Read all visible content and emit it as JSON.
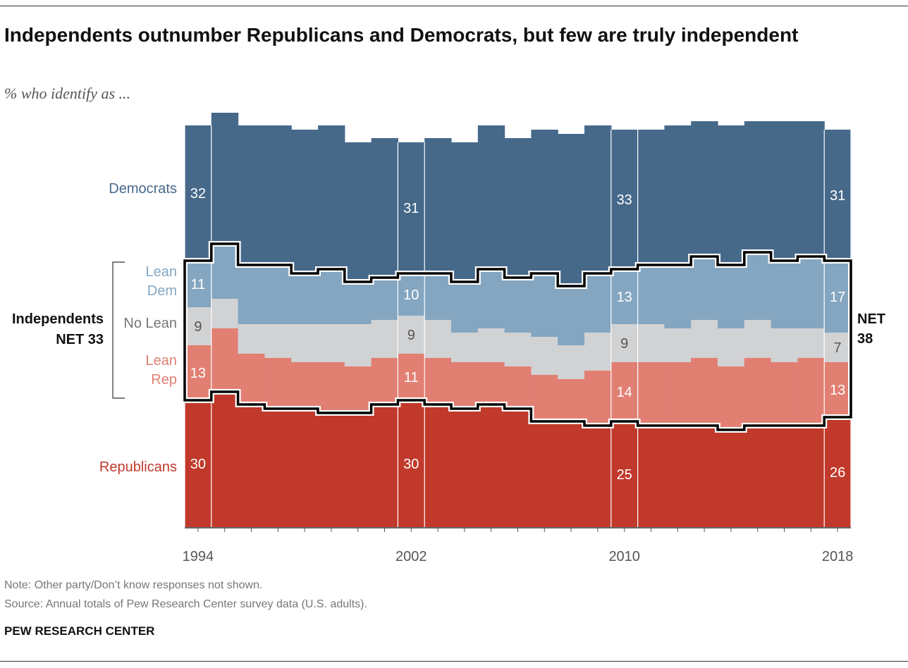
{
  "title": "Independents outnumber Republicans and Democrats, but few are truly independent",
  "subtitle": "% who identify as ...",
  "note": "Note: Other party/Don’t know responses not shown.",
  "source": "Source: Annual totals of Pew Research Center survey data (U.S. adults).",
  "brand": "PEW RESEARCH CENTER",
  "chart_data": {
    "type": "area",
    "stacked": true,
    "step": true,
    "x": [
      1994,
      1995,
      1996,
      1997,
      1998,
      1999,
      2000,
      2001,
      2002,
      2003,
      2004,
      2005,
      2006,
      2007,
      2008,
      2009,
      2010,
      2011,
      2012,
      2013,
      2014,
      2015,
      2016,
      2017,
      2018
    ],
    "x_tick_labels": [
      "1994",
      "2002",
      "2010",
      "2018"
    ],
    "labeled_years": [
      1994,
      2002,
      2010,
      2018
    ],
    "series": [
      {
        "name": "Republicans",
        "color": "#c0392b",
        "label_color": "#c0392b",
        "values": [
          30,
          32,
          29,
          28,
          28,
          27,
          27,
          29,
          30,
          29,
          28,
          29,
          28,
          25,
          25,
          24,
          25,
          24,
          24,
          24,
          23,
          24,
          24,
          24,
          26
        ]
      },
      {
        "name": "Lean Rep",
        "color": "#e27f73",
        "label_color": "#e27f73",
        "values": [
          13,
          15,
          12,
          12,
          11,
          12,
          11,
          11,
          11,
          11,
          11,
          10,
          10,
          11,
          10,
          13,
          14,
          15,
          15,
          16,
          15,
          16,
          15,
          16,
          13
        ]
      },
      {
        "name": "No Lean",
        "color": "#d1d2d4",
        "label_color": "#777777",
        "values": [
          9,
          7,
          7,
          8,
          9,
          9,
          10,
          9,
          9,
          9,
          7,
          8,
          8,
          9,
          8,
          9,
          9,
          9,
          8,
          9,
          9,
          9,
          8,
          7,
          7
        ]
      },
      {
        "name": "Lean Dem",
        "color": "#84a6c1",
        "label_color": "#84a6c1",
        "values": [
          11,
          13,
          14,
          14,
          12,
          13,
          10,
          10,
          10,
          11,
          12,
          14,
          13,
          15,
          14,
          14,
          13,
          14,
          15,
          15,
          15,
          16,
          16,
          17,
          17
        ]
      },
      {
        "name": "Democrats",
        "color": "#46698a",
        "label_color": "#46698a",
        "values": [
          32,
          31,
          33,
          33,
          34,
          34,
          33,
          33,
          31,
          32,
          33,
          34,
          33,
          34,
          36,
          35,
          33,
          32,
          33,
          32,
          33,
          31,
          33,
          32,
          31
        ]
      }
    ],
    "legend_labels": {
      "democrats": "Democrats",
      "lean_dem": [
        "Lean",
        "Dem"
      ],
      "no_lean": "No Lean",
      "lean_rep": [
        "Lean",
        "Rep"
      ],
      "republicans": "Republicans"
    },
    "independents_left": [
      "Independents",
      "NET 33"
    ],
    "independents_right": [
      "NET",
      "38"
    ],
    "grid": false
  }
}
